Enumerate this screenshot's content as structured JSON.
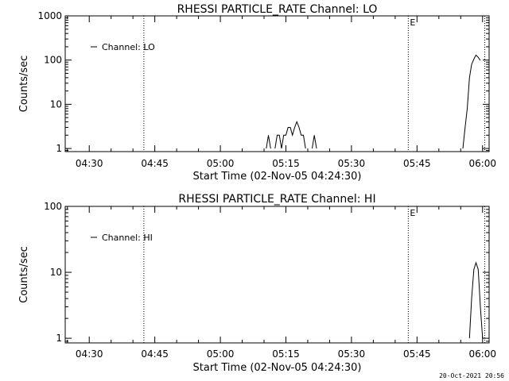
{
  "chart_data": [
    {
      "type": "line",
      "title": "RHESSI PARTICLE_RATE Channel: LO",
      "xlabel": "Start Time (02-Nov-05 04:24:30)",
      "ylabel": "Counts/sec",
      "y_scale": "log",
      "ylim": [
        0.85,
        1000
      ],
      "xlim": [
        "04:24:30",
        "06:01:30"
      ],
      "x_ticks": [
        "04:30",
        "04:45",
        "05:00",
        "05:15",
        "05:30",
        "05:45",
        "06:00"
      ],
      "y_ticks": [
        "1",
        "10",
        "100",
        "1000"
      ],
      "legend": {
        "position": "top-left",
        "entries": [
          "Channel: LO"
        ]
      },
      "markers": [
        {
          "time": "04:42:30",
          "label": ""
        },
        {
          "time": "05:43:00",
          "label": "E"
        },
        {
          "time": "06:00:30",
          "label": ""
        }
      ],
      "series": [
        {
          "name": "Channel: LO",
          "segments": [
            [
              {
                "x": "05:10:30",
                "y": 1
              },
              {
                "x": "05:11:00",
                "y": 2
              },
              {
                "x": "05:11:30",
                "y": 1
              }
            ],
            [
              {
                "x": "05:12:30",
                "y": 1
              },
              {
                "x": "05:13:00",
                "y": 2
              },
              {
                "x": "05:13:30",
                "y": 2
              },
              {
                "x": "05:14:00",
                "y": 1
              },
              {
                "x": "05:14:30",
                "y": 2
              },
              {
                "x": "05:15:00",
                "y": 2
              },
              {
                "x": "05:15:30",
                "y": 3
              },
              {
                "x": "05:16:00",
                "y": 3
              },
              {
                "x": "05:16:30",
                "y": 2
              },
              {
                "x": "05:17:00",
                "y": 3
              },
              {
                "x": "05:17:30",
                "y": 4
              },
              {
                "x": "05:18:00",
                "y": 3
              },
              {
                "x": "05:18:30",
                "y": 2
              },
              {
                "x": "05:19:00",
                "y": 2
              },
              {
                "x": "05:19:30",
                "y": 1
              }
            ],
            [
              {
                "x": "05:21:00",
                "y": 1
              },
              {
                "x": "05:21:30",
                "y": 2
              },
              {
                "x": "05:22:00",
                "y": 1
              }
            ],
            [
              {
                "x": "05:55:30",
                "y": 1
              },
              {
                "x": "05:56:00",
                "y": 3
              },
              {
                "x": "05:56:30",
                "y": 8
              },
              {
                "x": "05:57:00",
                "y": 40
              },
              {
                "x": "05:57:30",
                "y": 80
              },
              {
                "x": "05:58:00",
                "y": 105
              },
              {
                "x": "05:58:30",
                "y": 130
              },
              {
                "x": "05:59:00",
                "y": 115
              },
              {
                "x": "05:59:30",
                "y": 98
              }
            ]
          ]
        }
      ]
    },
    {
      "type": "line",
      "title": "RHESSI PARTICLE_RATE Channel: HI",
      "xlabel": "Start Time (02-Nov-05 04:24:30)",
      "ylabel": "Counts/sec",
      "y_scale": "log",
      "ylim": [
        0.85,
        100
      ],
      "xlim": [
        "04:24:30",
        "06:01:30"
      ],
      "x_ticks": [
        "04:30",
        "04:45",
        "05:00",
        "05:15",
        "05:30",
        "05:45",
        "06:00"
      ],
      "y_ticks": [
        "1",
        "10",
        "100"
      ],
      "legend": {
        "position": "top-left",
        "entries": [
          "Channel: HI"
        ]
      },
      "markers": [
        {
          "time": "04:42:30",
          "label": ""
        },
        {
          "time": "05:43:00",
          "label": "E"
        },
        {
          "time": "06:00:30",
          "label": ""
        }
      ],
      "series": [
        {
          "name": "Channel: HI",
          "segments": [
            [
              {
                "x": "05:57:00",
                "y": 1
              },
              {
                "x": "05:57:30",
                "y": 4
              },
              {
                "x": "05:58:00",
                "y": 11
              },
              {
                "x": "05:58:30",
                "y": 14
              },
              {
                "x": "05:59:00",
                "y": 11
              },
              {
                "x": "05:59:30",
                "y": 3
              },
              {
                "x": "06:00:00",
                "y": 1
              }
            ]
          ]
        }
      ]
    }
  ],
  "footer": {
    "timestamp": "20-Oct-2021 20:56"
  }
}
